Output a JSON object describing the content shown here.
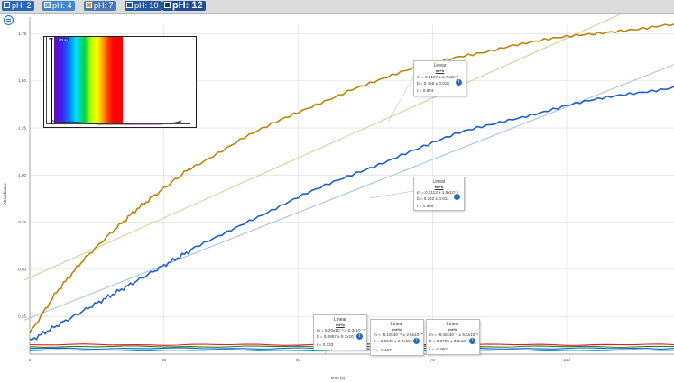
{
  "tabs": [
    {
      "label": "pH: 2",
      "color": "#2767b8",
      "swatch": "#2767b8",
      "active": false
    },
    {
      "label": "pH: 4",
      "color": "#3f86cf",
      "swatch": "#6fb0e8",
      "active": false
    },
    {
      "label": "pH: 7",
      "color": "#4a79b5",
      "swatch": "#c9a23a",
      "active": false
    },
    {
      "label": "pH: 10",
      "color": "#255aa3",
      "swatch": "#1a57b7",
      "active": false
    },
    {
      "label": "pH: 12",
      "color": "#1e4f96",
      "swatch": "#0b3d7a",
      "active": true
    }
  ],
  "graph": {
    "y_axis_label": "Absorbance",
    "x_axis_label": "Time (s)",
    "y_ticks": [
      "1.75",
      "1.50",
      "1.25",
      "1.00",
      "0.75",
      "0.50",
      "0.25"
    ],
    "x_ticks": [
      "0",
      "25",
      "50",
      "75",
      "100"
    ]
  },
  "chart_data": {
    "type": "line",
    "xlabel": "Time (s)",
    "ylabel": "Absorbance",
    "xlim": [
      0,
      120
    ],
    "ylim": [
      0.05,
      1.8
    ],
    "grid": true,
    "series": [
      {
        "color": "#b8860b",
        "x": [
          0,
          5,
          10,
          15,
          20,
          25,
          30,
          40,
          50,
          60,
          70,
          80,
          90,
          100,
          110,
          120
        ],
        "y": [
          0.16,
          0.38,
          0.55,
          0.69,
          0.82,
          0.93,
          1.04,
          1.2,
          1.33,
          1.46,
          1.55,
          1.63,
          1.69,
          1.73,
          1.77,
          1.8
        ]
      },
      {
        "color": "#1f5fc7",
        "x": [
          0,
          5,
          10,
          15,
          20,
          25,
          30,
          40,
          50,
          60,
          70,
          80,
          90,
          100,
          110,
          120
        ],
        "y": [
          0.12,
          0.2,
          0.28,
          0.36,
          0.44,
          0.52,
          0.6,
          0.75,
          0.88,
          1.0,
          1.12,
          1.22,
          1.3,
          1.37,
          1.42,
          1.47
        ]
      },
      {
        "color": "#d9241c",
        "x": [
          0,
          30,
          60,
          90,
          120
        ],
        "y": [
          0.1,
          0.1,
          0.1,
          0.1,
          0.1
        ]
      },
      {
        "color": "#2e7d32",
        "x": [
          0,
          30,
          60,
          90,
          120
        ],
        "y": [
          0.09,
          0.09,
          0.09,
          0.09,
          0.09
        ]
      },
      {
        "color": "#1f5fc7",
        "x": [
          0,
          30,
          60,
          90,
          120
        ],
        "y": [
          0.08,
          0.08,
          0.08,
          0.08,
          0.08
        ]
      },
      {
        "color": "#00a0a8",
        "x": [
          0,
          30,
          60,
          90,
          120
        ],
        "y": [
          0.07,
          0.07,
          0.07,
          0.07,
          0.07
        ]
      }
    ],
    "fit_lines": [
      {
        "color": "#e0c891",
        "m": 0.0127,
        "b": 0.456
      },
      {
        "color": "#9fc1ee",
        "m": 0.0112,
        "b": 0.242
      }
    ]
  },
  "fits": [
    {
      "title": "Linear",
      "subtitle": "mt+b",
      "m": "m = 0.0127 ± 2.7x10⁻⁴",
      "b": "b = 0.456  ± 0.018",
      "r": "r = 0.974"
    },
    {
      "title": "Linear",
      "subtitle": "mt+b",
      "m": "m = 0.0112 ± 1.5x10⁻⁴",
      "b": "b = 0.242  ± 0.011",
      "r": "r = 0.989"
    },
    {
      "title": "Linear",
      "subtitle": "mt+b",
      "m": "m = 6.20x10⁻⁶ ± 0.3x10⁻⁵",
      "b": "b = 0.0967  ± 9.7x10⁻⁴",
      "r": "r = 0.733"
    },
    {
      "title": "Linear",
      "subtitle": "mt+b",
      "m": "m = -5.10x10⁻⁶ ± 2.6x10⁻⁵",
      "b": "b = 0.0649  ± 2.7x10⁻⁴",
      "r": "r = -0.167"
    },
    {
      "title": "Linear",
      "subtitle": "mt+b",
      "m": "m = -8.40x10⁻⁶ ± 5.6x10⁻⁶",
      "b": "b = 0.0796  ± 3.5x10⁻⁴",
      "r": "r = -0.062"
    }
  ],
  "inset": {
    "cursor_label": "375 nm"
  }
}
